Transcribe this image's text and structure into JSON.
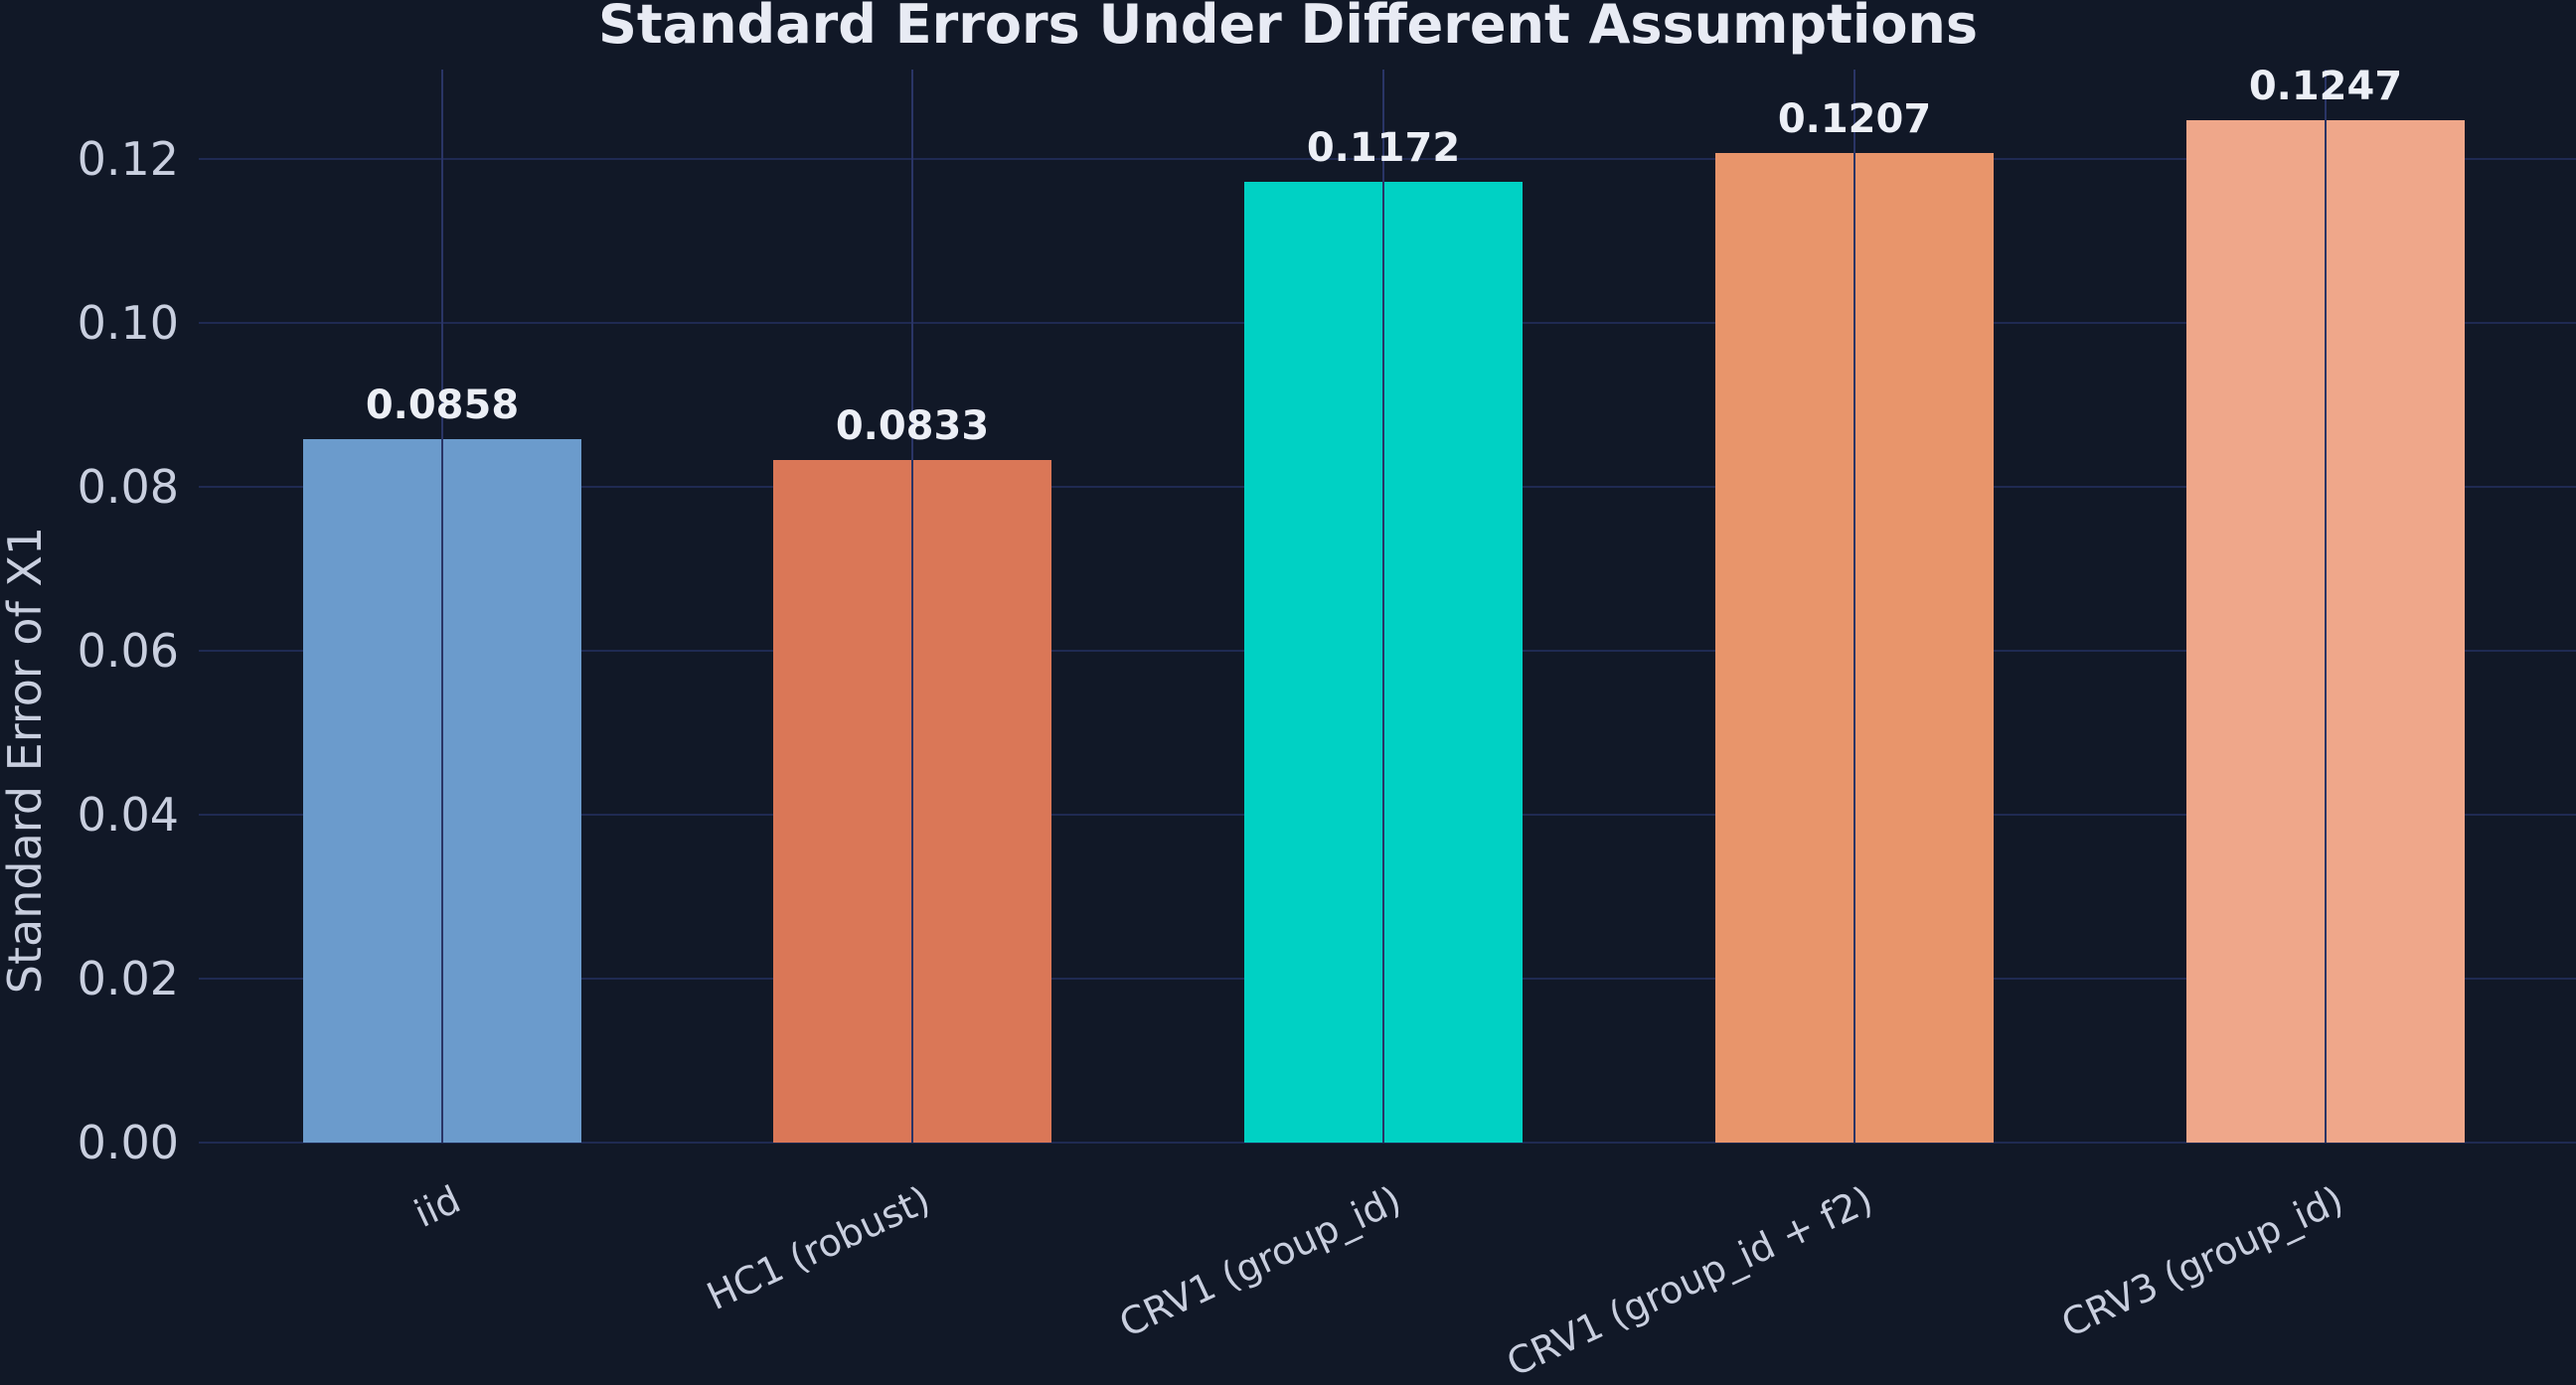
{
  "chart_data": {
    "type": "bar",
    "title": "Standard Errors Under Different Assumptions",
    "xlabel": "",
    "ylabel": "Standard Error of X1",
    "categories": [
      "iid",
      "HC1 (robust)",
      "CRV1 (group_id)",
      "CRV1 (group_id + f2)",
      "CRV3 (group_id)"
    ],
    "values": [
      0.0858,
      0.0833,
      0.1172,
      0.1207,
      0.1247
    ],
    "value_labels": [
      "0.0858",
      "0.0833",
      "0.1172",
      "0.1207",
      "0.1247"
    ],
    "colors": [
      "#6b9bcc",
      "#da7757",
      "#00d1c4",
      "#e8956b",
      "#efa78a"
    ],
    "ylim": [
      0,
      0.131
    ],
    "yticks": [
      "0.00",
      "0.02",
      "0.04",
      "0.06",
      "0.08",
      "0.10",
      "0.12"
    ],
    "grid": true,
    "legend": null,
    "background": "#111827",
    "grid_color": "#1f2a52"
  }
}
